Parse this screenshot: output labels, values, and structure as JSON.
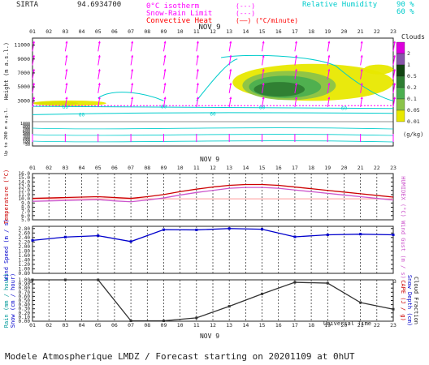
{
  "header": {
    "station": "SIRTA",
    "station_code": "94.6934700",
    "legend_isotherm": "0°C isotherm",
    "legend_isotherm_marker": "(---)",
    "legend_snow_rain": "Snow-Rain Limit",
    "legend_snow_rain_marker": "(---)",
    "legend_convective": "Convective Heat",
    "legend_convective_marker": "(——) (°C/minute)",
    "legend_rh": "Relative Humidity",
    "legend_rh_90": "90 %",
    "legend_rh_60": "60 %",
    "colors": {
      "isotherm": "#ff00ff",
      "snow_rain": "#ff00ff",
      "convective": "#ff0000",
      "rh": "#00cccc"
    }
  },
  "time_axis": {
    "hours": [
      "01",
      "02",
      "03",
      "04",
      "05",
      "06",
      "07",
      "08",
      "09",
      "10",
      "11",
      "12",
      "13",
      "14",
      "15",
      "16",
      "17",
      "18",
      "19",
      "20",
      "21",
      "22",
      "23"
    ],
    "date_label": "NOV  9",
    "bottom_label": "Universal Time"
  },
  "footer": {
    "text": "Modele Atmospherique LMDZ / Forecast starting on 20201109 at 0hUT"
  },
  "chart_data": [
    {
      "type": "heatmap",
      "name": "clouds_panel",
      "ylabel": "Height  (m a.s.l.)",
      "ylabel_low": "Up to 200 m a.g.l.",
      "yticks_upper": [
        "11000",
        "9000",
        "7000",
        "5000",
        "3000"
      ],
      "yticks_lower": [
        "1000",
        "900",
        "800",
        "700",
        "600",
        "500",
        "400",
        "300",
        "200",
        "150",
        "100",
        "50"
      ],
      "ylim": [
        0,
        12000
      ],
      "isotherm_height_m": 2300,
      "colorbar": {
        "title": "Clouds",
        "unit": "(g/kg)",
        "levels": [
          "2",
          "1",
          "0.5",
          "0.2",
          "0.1",
          "0.05",
          "0.01"
        ],
        "colors": [
          "#dd00dd",
          "#8855aa",
          "#114411",
          "#2e7d32",
          "#4caf50",
          "#8bc34a",
          "#e8e800"
        ]
      },
      "cloud_blobs": [
        {
          "level": "0.01",
          "x0": 13.2,
          "x1": 23.0,
          "y0": 3000,
          "y1": 8300,
          "color": "#e8e800"
        },
        {
          "level": "0.05",
          "x0": 13.8,
          "x1": 19.5,
          "y0": 3100,
          "y1": 7300,
          "color": "#8bc34a"
        },
        {
          "level": "0.1",
          "x0": 14.2,
          "x1": 18.6,
          "y0": 3400,
          "y1": 6600,
          "color": "#4caf50"
        },
        {
          "level": "0.2",
          "x0": 14.5,
          "x1": 17.6,
          "y0": 3600,
          "y1": 5700,
          "color": "#2e7d32"
        },
        {
          "level": "0.01",
          "x0": 21.2,
          "x1": 23.0,
          "y0": 6800,
          "y1": 8200,
          "color": "#e8e800"
        },
        {
          "level": "0.2",
          "x0": 1.0,
          "x1": 3.8,
          "y0": 2400,
          "y1": 2900,
          "color": "#114411"
        },
        {
          "level": "0.01",
          "x0": 1.0,
          "x1": 5.5,
          "y0": 2250,
          "y1": 3050,
          "color": "#e8e800"
        }
      ],
      "wind_vectors_upper": [
        {
          "x": 1,
          "dir": "up"
        },
        {
          "x": 3,
          "dir": "up"
        },
        {
          "x": 5,
          "dir": "up"
        },
        {
          "x": 7,
          "dir": "up"
        },
        {
          "x": 9,
          "dir": "up"
        },
        {
          "x": 11,
          "dir": "up"
        },
        {
          "x": 13,
          "dir": "up"
        },
        {
          "x": 15,
          "dir": "up"
        },
        {
          "x": 17,
          "dir": "up"
        },
        {
          "x": 19,
          "dir": "up"
        },
        {
          "x": 21,
          "dir": "up"
        },
        {
          "x": 23,
          "dir": "up"
        }
      ],
      "rh_contour_label": "60"
    },
    {
      "type": "line",
      "name": "temperature_panel",
      "ylabel": "Temperature (°C)",
      "y2label": "HUMIDEX (°C)",
      "yticks": [
        "16.0",
        "15.0",
        "14.0",
        "13.0",
        "12.0",
        "11.0",
        "10.0",
        "9.0",
        "8.0",
        "7.0",
        "6.0",
        "5.0"
      ],
      "ylim": [
        5.0,
        16.0
      ],
      "x": [
        1,
        2,
        3,
        4,
        5,
        6,
        7,
        8,
        9,
        10,
        11,
        12,
        13,
        14,
        15,
        16,
        17,
        18,
        19,
        20,
        21,
        22,
        23
      ],
      "series": [
        {
          "name": "Temperature",
          "color": "#cc0000",
          "values": [
            10.1,
            10.2,
            10.3,
            10.4,
            10.5,
            10.3,
            10.1,
            10.5,
            11.0,
            11.7,
            12.3,
            12.8,
            13.2,
            13.4,
            13.4,
            13.2,
            12.8,
            12.4,
            12.0,
            11.6,
            11.2,
            10.8,
            10.4
          ]
        },
        {
          "name": "HUMIDEX",
          "color": "#cc55cc",
          "values": [
            9.4,
            9.5,
            9.6,
            9.7,
            9.8,
            9.5,
            9.3,
            9.7,
            10.2,
            10.9,
            11.5,
            12.0,
            12.5,
            12.7,
            12.7,
            12.5,
            12.1,
            11.7,
            11.3,
            10.9,
            10.5,
            10.1,
            9.7
          ]
        }
      ],
      "reference_lines": [
        10.0
      ]
    },
    {
      "type": "line",
      "name": "wind_panel",
      "ylabel": "Wind Speed (m / s)",
      "y2label": "Wind Gust (m / s)",
      "yticks": [
        "2.80",
        "2.60",
        "2.40",
        "2.20",
        "2.00",
        "1.80",
        "1.60",
        "1.40",
        "1.20",
        "1.00",
        "0.80"
      ],
      "ylim": [
        0.8,
        2.9
      ],
      "x": [
        1,
        3,
        5,
        7,
        9,
        11,
        13,
        15,
        17,
        19,
        21,
        23
      ],
      "series": [
        {
          "name": "Wind Speed",
          "color": "#0000cc",
          "values": [
            2.27,
            2.42,
            2.48,
            2.22,
            2.75,
            2.74,
            2.8,
            2.77,
            2.43,
            2.52,
            2.55,
            2.52
          ]
        }
      ]
    },
    {
      "type": "line",
      "name": "rain_panel",
      "ylabel": "Rain (mm / hour)",
      "ylabel2": "Snow (cm / hour)",
      "y2label": "CAPE (J / g)",
      "y2label2": "Snow Depth (cm)",
      "y2label3": "Cloud Fraction",
      "yticks": [
        "1.00",
        "0.90",
        "0.80",
        "0.70",
        "0.60",
        "0.50",
        "0.40",
        "0.30",
        "0.20",
        "0.10",
        "0.00"
      ],
      "ylim": [
        0.0,
        1.0
      ],
      "x": [
        1,
        3,
        5,
        7,
        9,
        11,
        13,
        15,
        17,
        19,
        21,
        23
      ],
      "series": [
        {
          "name": "Cloud Fraction",
          "color": "#333333",
          "values": [
            1.0,
            1.0,
            1.0,
            0.01,
            0.01,
            0.08,
            0.36,
            0.66,
            0.94,
            0.92,
            0.45,
            0.29
          ]
        }
      ]
    }
  ]
}
